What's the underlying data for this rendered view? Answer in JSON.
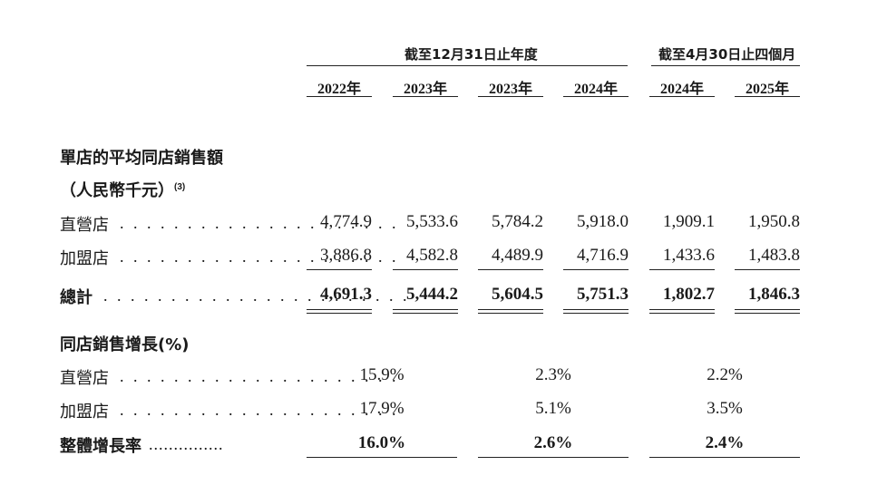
{
  "group_headers": {
    "annual": "截至12月31日止年度",
    "interim": "截至4月30日止四個月"
  },
  "columns": [
    "2022年",
    "2023年",
    "2023年",
    "2024年",
    "2024年",
    "2025年"
  ],
  "section1": {
    "title": "單店的平均同店銷售額",
    "unit": "（人民幣千元）",
    "note": "(3)",
    "rows": [
      {
        "label": "直營店",
        "values": [
          "4,774.9",
          "5,533.6",
          "5,784.2",
          "5,918.0",
          "1,909.1",
          "1,950.8"
        ]
      },
      {
        "label": "加盟店",
        "values": [
          "3,886.8",
          "4,582.8",
          "4,489.9",
          "4,716.9",
          "1,433.6",
          "1,483.8"
        ]
      },
      {
        "label": "總計",
        "values": [
          "4,691.3",
          "5,444.2",
          "5,604.5",
          "5,751.3",
          "1,802.7",
          "1,846.3"
        ]
      }
    ]
  },
  "section2": {
    "title": "同店銷售增長(%)",
    "rows": [
      {
        "label": "直營店",
        "values": [
          "15.9%",
          "2.3%",
          "2.2%"
        ]
      },
      {
        "label": "加盟店",
        "values": [
          "17.9%",
          "5.1%",
          "3.5%"
        ]
      },
      {
        "label": "整體增長率",
        "values": [
          "16.0%",
          "2.6%",
          "2.4%"
        ]
      }
    ]
  },
  "leader_dots": ". . . . . . . . . . . . . . . . . . . . .",
  "leader_dots_bold": "...............",
  "leader_dots_total": ". . . . . . . . . . . . . . . . . . . . . . ."
}
